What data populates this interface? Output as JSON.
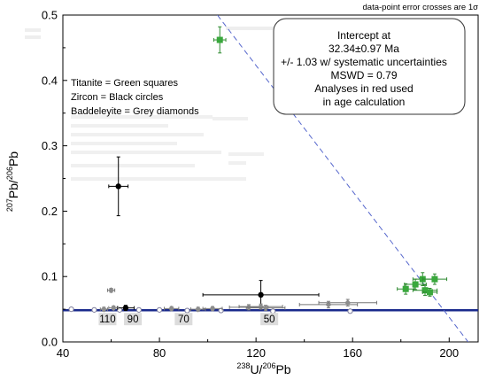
{
  "chart_data": {
    "type": "scatter",
    "title": "",
    "note": "data-point  error crosses are 1σ",
    "xlabel": {
      "pre": "238",
      "a": "U/",
      "pre2": "206",
      "b": "Pb"
    },
    "ylabel": {
      "pre": "207",
      "a": "Pb/",
      "pre2": "206",
      "b": "Pb"
    },
    "xlim": [
      40,
      212
    ],
    "ylim": [
      0,
      0.5
    ],
    "x_ticks": [
      "40",
      "80",
      "120",
      "160",
      "200"
    ],
    "y_ticks": [
      "0.0",
      "0.1",
      "0.2",
      "0.3",
      "0.4",
      "0.5"
    ],
    "grid": false,
    "legend": {
      "titanite": "Titanite = Green squares",
      "zircon": "Zircon = Black circles",
      "baddeleyite": "Baddeleyite = Grey diamonds"
    },
    "result_box": {
      "l1": "Intercept at",
      "l2": "32.34±0.97 Ma",
      "l3": "+/- 1.03 w/ systematic uncertainties",
      "l4": "MSWD = 0.79",
      "l5": "Analyses in red used",
      "l6": "in age calculation"
    },
    "concordia_labels": [
      "110",
      "90",
      "70",
      "50"
    ],
    "concordia_points": [
      {
        "x": 43.5,
        "y": 0.05
      },
      {
        "x": 53.0,
        "y": 0.049
      },
      {
        "x": 63.5,
        "y": 0.049
      },
      {
        "x": 71.5,
        "y": 0.049
      },
      {
        "x": 80.0,
        "y": 0.049
      },
      {
        "x": 91.5,
        "y": 0.048
      },
      {
        "x": 105.5,
        "y": 0.048
      },
      {
        "x": 127.0,
        "y": 0.047
      },
      {
        "x": 159.0,
        "y": 0.047
      }
    ],
    "concordia_label_x": [
      58.5,
      69.0,
      90.0,
      125.5
    ],
    "lines": {
      "regression": {
        "x1": 40,
        "y1": 0.0485,
        "x2": 212,
        "y2": 0.0485
      },
      "intercept": {
        "x1": 104,
        "y1": 0.5,
        "x2": 212,
        "y2": -0.02
      }
    },
    "series": [
      {
        "name": "Titanite",
        "marker": "square",
        "color": "#39a83c",
        "points": [
          {
            "x": 105,
            "y": 0.462,
            "ex": 2.5,
            "ey": 0.02
          },
          {
            "x": 182,
            "y": 0.081,
            "ex": 3.5,
            "ey": 0.008
          },
          {
            "x": 186,
            "y": 0.088,
            "ex": 4.5,
            "ey": 0.008
          },
          {
            "x": 189,
            "y": 0.096,
            "ex": 4.0,
            "ey": 0.01
          },
          {
            "x": 190,
            "y": 0.079,
            "ex": 5.0,
            "ey": 0.008
          },
          {
            "x": 194,
            "y": 0.096,
            "ex": 5.0,
            "ey": 0.008
          },
          {
            "x": 192,
            "y": 0.076,
            "ex": 3.0,
            "ey": 0.006
          }
        ]
      },
      {
        "name": "Zircon",
        "marker": "circle",
        "color": "#000000",
        "points": [
          {
            "x": 63,
            "y": 0.238,
            "ex": 4.0,
            "ey": 0.045
          },
          {
            "x": 122,
            "y": 0.072,
            "ex": 24.0,
            "ey": 0.022
          },
          {
            "x": 66,
            "y": 0.052,
            "ex": 3.5,
            "ey": 0.004
          }
        ]
      },
      {
        "name": "Baddeleyite",
        "marker": "diamond",
        "color": "#8c8c8c",
        "points": [
          {
            "x": 60,
            "y": 0.079,
            "ex": 1.5,
            "ey": 0.003
          },
          {
            "x": 57,
            "y": 0.05,
            "ex": 1.5,
            "ey": 0.003
          },
          {
            "x": 61,
            "y": 0.052,
            "ex": 2.0,
            "ey": 0.003
          },
          {
            "x": 85,
            "y": 0.051,
            "ex": 3.0,
            "ey": 0.003
          },
          {
            "x": 96,
            "y": 0.05,
            "ex": 3.0,
            "ey": 0.003
          },
          {
            "x": 102,
            "y": 0.051,
            "ex": 4.0,
            "ey": 0.003
          },
          {
            "x": 117,
            "y": 0.053,
            "ex": 8.0,
            "ey": 0.004
          },
          {
            "x": 122,
            "y": 0.054,
            "ex": 9.0,
            "ey": 0.004
          },
          {
            "x": 124,
            "y": 0.052,
            "ex": 8.0,
            "ey": 0.004
          },
          {
            "x": 150,
            "y": 0.057,
            "ex": 12.0,
            "ey": 0.005
          },
          {
            "x": 158,
            "y": 0.06,
            "ex": 12.0,
            "ey": 0.005
          }
        ]
      }
    ]
  }
}
